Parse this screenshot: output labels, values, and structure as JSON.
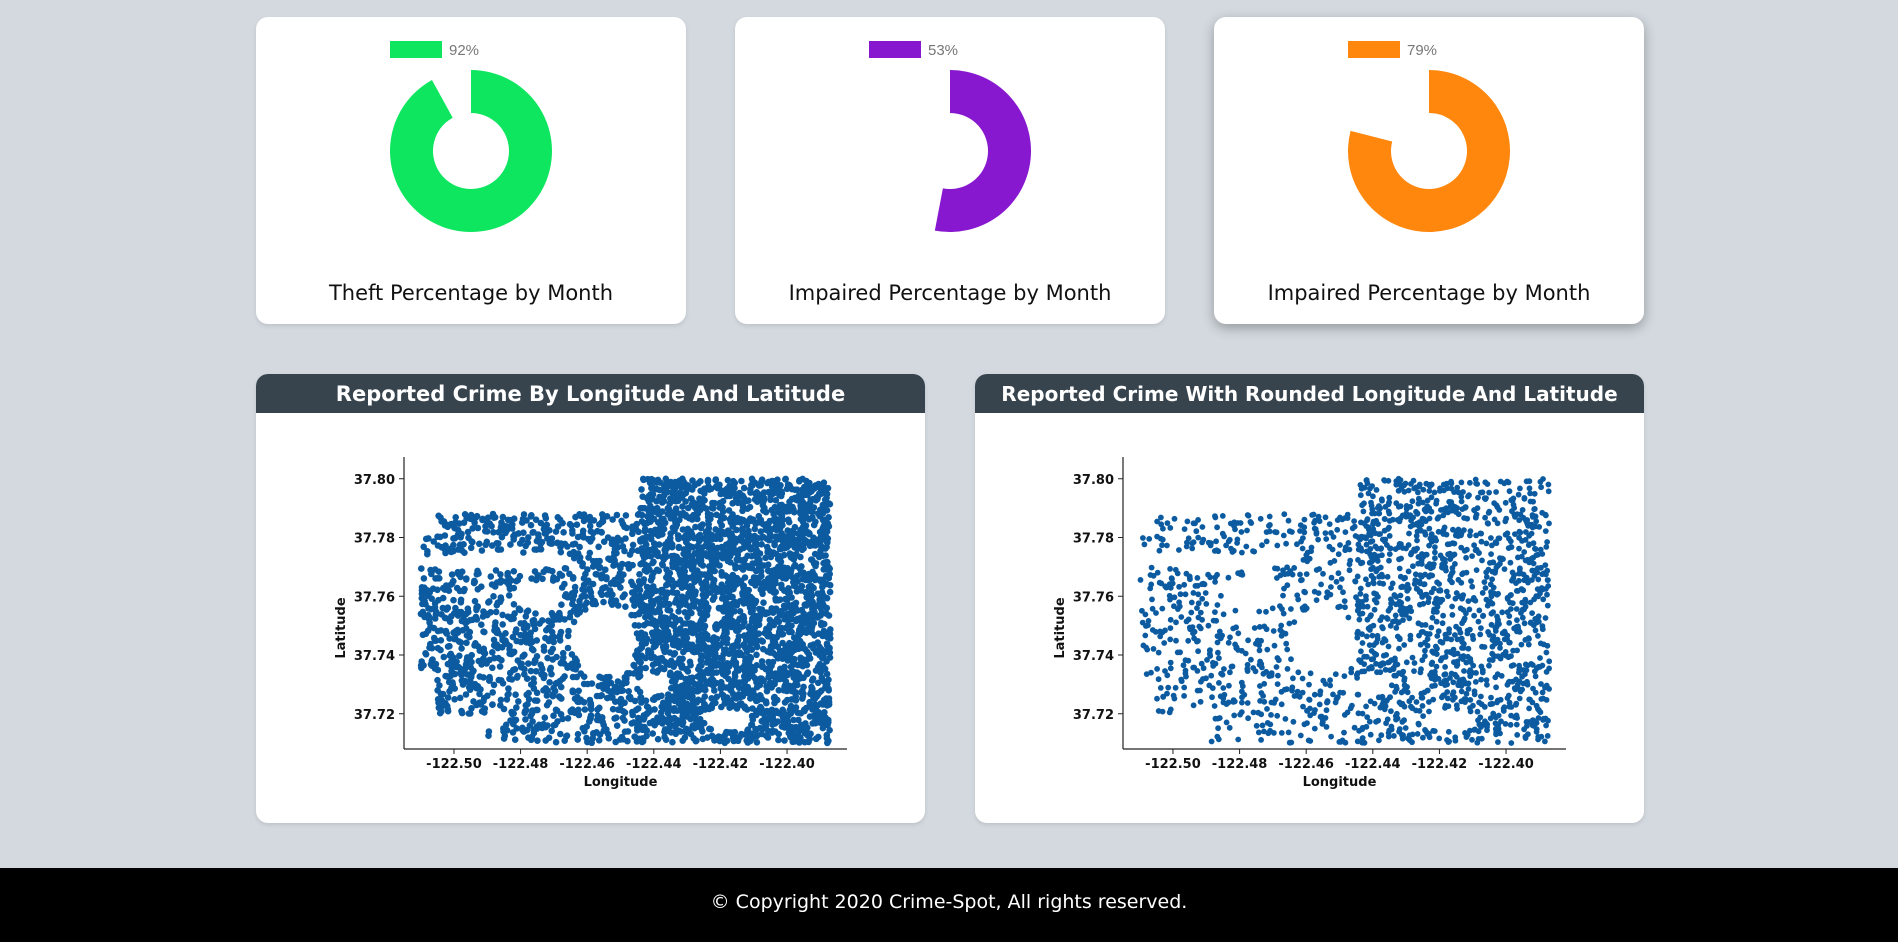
{
  "donut_cards": [
    {
      "title": "Theft Percentage by Month",
      "percent_label": "92%",
      "value": 92,
      "color": "#0de65e"
    },
    {
      "title": "Impaired Percentage by Month",
      "percent_label": "53%",
      "value": 53,
      "color": "#8718cf"
    },
    {
      "title": "Impaired Percentage by Month",
      "percent_label": "79%",
      "value": 79,
      "color": "#ff870d"
    }
  ],
  "scatter_cards": [
    {
      "title": "Reported Crime By Longitude And Latitude",
      "chart_data": {
        "type": "scatter",
        "xlabel": "Longitude",
        "ylabel": "Latitude",
        "xlim": [
          -122.515,
          -122.385
        ],
        "ylim": [
          37.708,
          37.804
        ],
        "xticks": [
          "-122.50",
          "-122.48",
          "-122.46",
          "-122.44",
          "-122.42",
          "-122.40"
        ],
        "yticks": [
          "37.80",
          "37.78",
          "37.76",
          "37.74",
          "37.72"
        ],
        "marker_color": "#0c5ba0",
        "density": "dense"
      }
    },
    {
      "title": "Reported Crime With Rounded Longitude And Latitude",
      "chart_data": {
        "type": "scatter",
        "xlabel": "Longitude",
        "ylabel": "Latitude",
        "xlim": [
          -122.515,
          -122.385
        ],
        "ylim": [
          37.708,
          37.804
        ],
        "xticks": [
          "-122.50",
          "-122.48",
          "-122.46",
          "-122.44",
          "-122.42",
          "-122.40"
        ],
        "yticks": [
          "37.80",
          "37.78",
          "37.76",
          "37.74",
          "37.72"
        ],
        "marker_color": "#0c5ba0",
        "density": "sparse"
      }
    }
  ],
  "footer": {
    "text": "© Copyright 2020 Crime-Spot, All rights reserved."
  }
}
